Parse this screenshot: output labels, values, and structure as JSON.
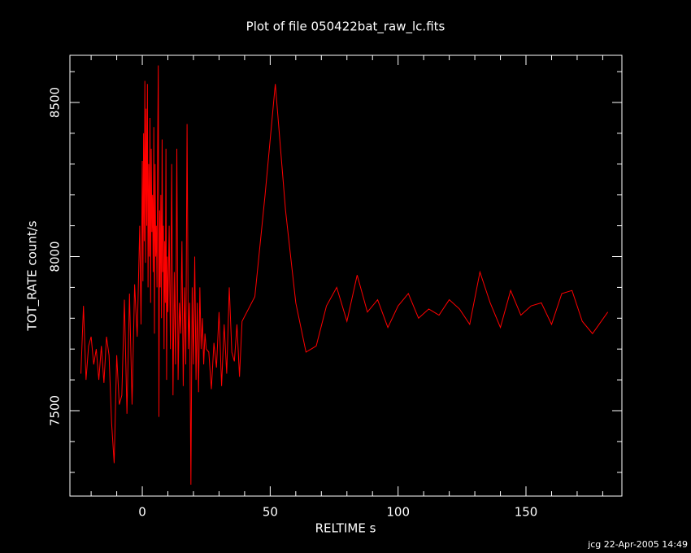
{
  "chart_data": {
    "type": "line",
    "title": "Plot of file 050422bat_raw_lc.fits",
    "xlabel": "RELTIME  s",
    "ylabel": "TOT_RATE  count/s",
    "footer": "jcg 22-Apr-2005 14:49",
    "color": "#ff0000",
    "xlim": [
      -28.3,
      187.5
    ],
    "ylim": [
      7223,
      8653
    ],
    "xticks": [
      0,
      50,
      100,
      150
    ],
    "yticks": [
      7500,
      8000,
      8500
    ],
    "xminorticks": [
      -20,
      -10,
      10,
      20,
      30,
      40,
      60,
      70,
      80,
      90,
      110,
      120,
      130,
      140,
      160,
      170,
      180
    ],
    "yminorticks": [
      7300,
      7400,
      7600,
      7700,
      7800,
      7900,
      8100,
      8200,
      8300,
      8400,
      8600
    ],
    "x": [
      -24,
      -23,
      -22,
      -21,
      -20,
      -19,
      -18,
      -17,
      -16,
      -15,
      -14,
      -13,
      -12,
      -11,
      -10,
      -9,
      -8,
      -7,
      -6,
      -5,
      -4,
      -3,
      -2,
      -1,
      -0.5,
      0,
      0.25,
      0.5,
      0.75,
      1,
      1.25,
      1.5,
      1.75,
      2,
      2.25,
      2.5,
      2.75,
      3,
      3.25,
      3.5,
      3.75,
      4,
      4.25,
      4.5,
      4.75,
      5,
      5.25,
      5.5,
      5.75,
      6,
      6.25,
      6.5,
      6.75,
      7,
      7.25,
      7.5,
      7.75,
      8,
      8.25,
      8.5,
      8.75,
      9,
      9.25,
      9.5,
      9.75,
      10,
      10.5,
      11,
      11.5,
      12,
      12.5,
      13,
      13.5,
      14,
      14.5,
      15,
      15.5,
      16,
      16.5,
      17,
      17.5,
      18,
      18.5,
      19,
      19.5,
      20,
      20.5,
      21,
      21.5,
      22,
      22.5,
      23,
      23.5,
      24,
      24.5,
      25,
      26,
      27,
      28,
      29,
      30,
      31,
      32,
      33,
      34,
      35,
      36,
      37,
      38,
      39,
      44,
      48,
      52,
      56,
      60,
      64,
      68,
      72,
      76,
      80,
      84,
      88,
      92,
      96,
      100,
      104,
      108,
      112,
      116,
      120,
      124,
      128,
      132,
      136,
      140,
      144,
      148,
      152,
      156,
      160,
      164,
      168,
      172,
      176,
      182
    ],
    "values": [
      7620,
      7840,
      7600,
      7710,
      7740,
      7650,
      7700,
      7600,
      7710,
      7590,
      7740,
      7680,
      7460,
      7330,
      7680,
      7520,
      7550,
      7860,
      7490,
      7880,
      7520,
      7910,
      7740,
      8100,
      7780,
      8310,
      7920,
      8400,
      8050,
      8570,
      7980,
      8480,
      8100,
      8560,
      7900,
      8300,
      8000,
      8450,
      7850,
      8350,
      8080,
      8200,
      7950,
      8420,
      7750,
      8300,
      8000,
      8100,
      7900,
      8350,
      8620,
      7480,
      8150,
      7900,
      8200,
      7800,
      8380,
      7950,
      8100,
      7700,
      8050,
      7850,
      8350,
      7600,
      8000,
      7820,
      8100,
      7700,
      8300,
      7550,
      7950,
      7650,
      8350,
      7600,
      7850,
      7750,
      8050,
      7580,
      7900,
      7650,
      8430,
      7700,
      7850,
      7260,
      7900,
      7650,
      8000,
      7600,
      7850,
      7560,
      7900,
      7700,
      7800,
      7650,
      7750,
      7700,
      7690,
      7570,
      7720,
      7640,
      7820,
      7580,
      7780,
      7620,
      7900,
      7690,
      7660,
      7780,
      7610,
      7790,
      7870,
      8200,
      8560,
      8150,
      7850,
      7690,
      7710,
      7840,
      7900,
      7790,
      7940,
      7820,
      7860,
      7770,
      7840,
      7880,
      7800,
      7830,
      7810,
      7860,
      7830,
      7780,
      7950,
      7850,
      7770,
      7890,
      7810,
      7840,
      7850,
      7780,
      7880,
      7890,
      7790,
      7750,
      7820
    ]
  }
}
